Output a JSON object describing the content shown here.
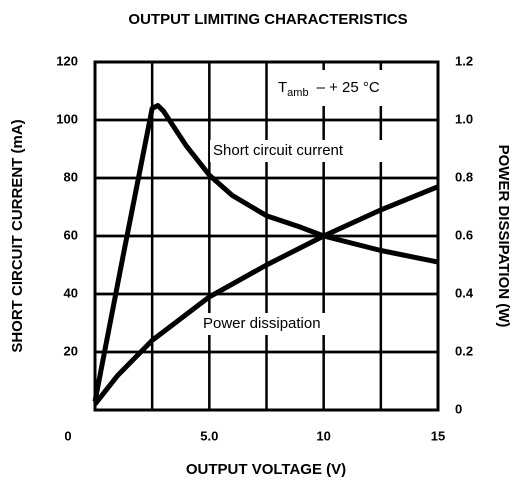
{
  "chart_data": {
    "type": "line",
    "title": "OUTPUT LIMITING CHARACTERISTICS",
    "x_label": "OUTPUT VOLTAGE (V)",
    "y_label": "SHORT CIRCUIT CURRENT (mA)",
    "y2_label": "POWER DISSIPATION (W)",
    "annotation": {
      "main": "T",
      "sub": "amb",
      "rest": "– + 25 °C"
    },
    "xlim": [
      0,
      15
    ],
    "xticks": [
      0,
      {
        "value": 5,
        "label": "5.0"
      },
      10,
      15
    ],
    "x_minor_ticks": [
      2.5,
      7.5,
      12.5
    ],
    "ylim": [
      0,
      120
    ],
    "yticks": [
      20,
      40,
      60,
      80,
      100,
      120
    ],
    "y2lim": [
      0,
      1.2
    ],
    "y2ticks": [
      0,
      0.2,
      0.4,
      0.6,
      0.8,
      {
        "value": 1,
        "label": "1.0"
      },
      1.2
    ],
    "grid": true,
    "series": [
      {
        "name": "Short circuit current",
        "color": "#000000",
        "x": [
          0,
          1.25,
          2.5,
          2.75,
          3,
          3.5,
          4,
          5,
          6,
          7.5,
          9,
          10,
          12.5,
          15
        ],
        "values": [
          3,
          54,
          104,
          105,
          103,
          97,
          91,
          81,
          74,
          67,
          63,
          60,
          55,
          51
        ]
      },
      {
        "name": "Power dissipation",
        "color": "#000000",
        "axis": "y2",
        "x": [
          0,
          0.5,
          1,
          1.5,
          2,
          2.5,
          3.5,
          5,
          7.5,
          10,
          12.5,
          15
        ],
        "values": [
          0.02,
          0.07,
          0.12,
          0.16,
          0.2,
          0.24,
          0.3,
          0.39,
          0.5,
          0.6,
          0.69,
          0.77
        ]
      }
    ]
  }
}
